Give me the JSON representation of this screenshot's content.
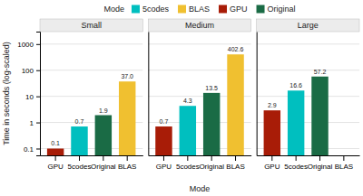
{
  "chart_data": [
    {
      "type": "bar",
      "title": "Small",
      "categories": [
        "GPU",
        "5codes",
        "Original",
        "BLAS"
      ],
      "values": [
        0.1,
        0.7,
        1.9,
        37.0
      ],
      "value_labels": [
        "0.1",
        "0.7",
        "1.9",
        "37.0"
      ],
      "colors": [
        "#A81C07",
        "#00BFBF",
        "#1A6B45",
        "#F0C030"
      ],
      "ylabel": "Time in seconds (log-scaled)",
      "ylim": [
        0.055,
        3000
      ],
      "yticks": [
        0.1,
        1,
        10,
        100,
        1000
      ],
      "log": "y",
      "grid": true,
      "data_labels": true,
      "legend_title": "Mode",
      "legend_entries": [
        "5codes",
        "BLAS",
        "GPU",
        "Original"
      ]
    },
    {
      "type": "bar",
      "title": "Medium",
      "categories": [
        "GPU",
        "5codes",
        "Original",
        "BLAS"
      ],
      "values": [
        0.7,
        4.3,
        13.5,
        402.6
      ],
      "value_labels": [
        "0.7",
        "4.3",
        "13.5",
        "402.6"
      ],
      "colors": [
        "#A81C07",
        "#00BFBF",
        "#1A6B45",
        "#F0C030"
      ],
      "xlabel": "Mode",
      "ylim": [
        0.055,
        3000
      ],
      "yticks": [
        0.1,
        1,
        10,
        100,
        1000
      ],
      "log": "y",
      "grid": true,
      "data_labels": true,
      "tick_labels": "x"
    },
    {
      "type": "bar",
      "title": "Large",
      "categories": [
        "GPU",
        "5codes",
        "Original",
        "BLAS"
      ],
      "values": [
        2.9,
        16.6,
        57.2,
        null
      ],
      "value_labels": [
        "2.9",
        "16.6",
        "57.2",
        null
      ],
      "colors": [
        "#A81C07",
        "#00BFBF",
        "#1A6B45",
        "#F0C030"
      ],
      "ylim": [
        0.055,
        3000
      ],
      "yticks": [
        0.1,
        1,
        10,
        100,
        1000
      ],
      "log": "y",
      "grid": true,
      "data_labels": true,
      "tick_labels": "x"
    }
  ]
}
